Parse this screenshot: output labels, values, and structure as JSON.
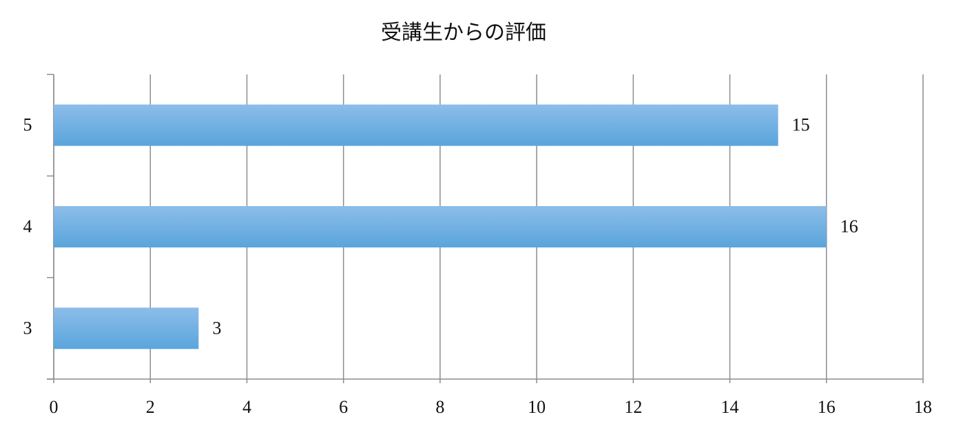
{
  "chart_data": {
    "type": "hbar",
    "title": "受講生からの評価",
    "categories": [
      "3",
      "4",
      "5"
    ],
    "values": [
      3,
      16,
      15
    ],
    "color": "#5aa5dc",
    "xlim": [
      0,
      18
    ],
    "xticks": [
      0,
      2,
      4,
      6,
      8,
      10,
      12,
      14,
      16,
      18
    ],
    "grid": true
  }
}
